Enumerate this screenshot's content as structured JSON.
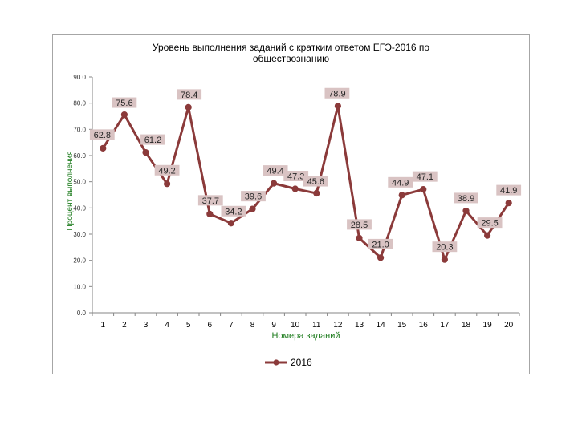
{
  "chart_data": {
    "type": "line",
    "title_lines": [
      "Уровень выполнения заданий с кратким ответом ЕГЭ-2016 по",
      "обществознанию"
    ],
    "xlabel": "Номера заданий",
    "ylabel": "Процент выполнения",
    "categories": [
      "1",
      "2",
      "3",
      "4",
      "5",
      "6",
      "7",
      "8",
      "9",
      "10",
      "11",
      "12",
      "13",
      "14",
      "15",
      "16",
      "17",
      "18",
      "19",
      "20"
    ],
    "ylim": [
      0,
      90
    ],
    "yticks": [
      "0.0",
      "10.0",
      "20.0",
      "30.0",
      "40.0",
      "50.0",
      "60.0",
      "70.0",
      "80.0",
      "90.0"
    ],
    "legend_position": "bottom",
    "series": [
      {
        "name": "2016",
        "color": "#8b3a3a",
        "values": [
          62.8,
          75.6,
          61.2,
          49.2,
          78.4,
          37.7,
          34.2,
          39.6,
          49.4,
          47.3,
          45.6,
          78.9,
          28.5,
          21.0,
          44.9,
          47.1,
          20.3,
          38.9,
          29.5,
          41.9
        ],
        "labels": [
          "62.8",
          "75.6",
          "61.2",
          "49.2",
          "78.4",
          "37.7",
          "34.2",
          "39.6",
          "49.4",
          "47.3",
          "45.6",
          "78.9",
          "28.5",
          "21.0",
          "44.9",
          "47.1",
          "20.3",
          "38.9",
          "29.5",
          "41.9"
        ]
      }
    ],
    "grid": false
  }
}
